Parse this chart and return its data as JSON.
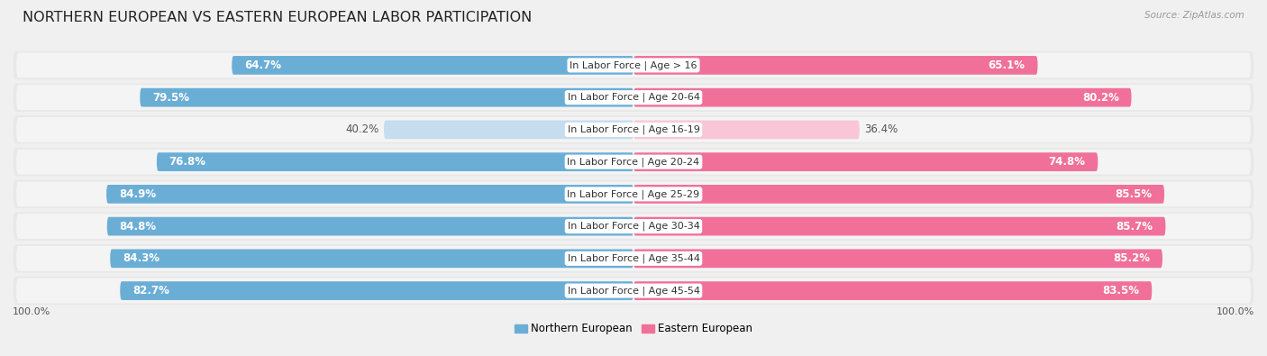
{
  "title": "NORTHERN EUROPEAN VS EASTERN EUROPEAN LABOR PARTICIPATION",
  "source": "Source: ZipAtlas.com",
  "categories": [
    "In Labor Force | Age > 16",
    "In Labor Force | Age 20-64",
    "In Labor Force | Age 16-19",
    "In Labor Force | Age 20-24",
    "In Labor Force | Age 25-29",
    "In Labor Force | Age 30-34",
    "In Labor Force | Age 35-44",
    "In Labor Force | Age 45-54"
  ],
  "northern_values": [
    64.7,
    79.5,
    40.2,
    76.8,
    84.9,
    84.8,
    84.3,
    82.7
  ],
  "eastern_values": [
    65.1,
    80.2,
    36.4,
    74.8,
    85.5,
    85.7,
    85.2,
    83.5
  ],
  "northern_color": "#6aaed6",
  "northern_color_light": "#c6dcef",
  "eastern_color": "#f0709a",
  "eastern_color_light": "#f9c6d8",
  "row_bg_color": "#e8e8e8",
  "row_bg_inner": "#f4f4f4",
  "label_color_white": "#ffffff",
  "label_color_dark": "#555555",
  "max_value": 100.0,
  "legend_northern": "Northern European",
  "legend_eastern": "Eastern European",
  "title_fontsize": 11.5,
  "value_fontsize": 8.5,
  "category_fontsize": 8.0,
  "legend_fontsize": 8.5,
  "axis_label_fontsize": 8.0,
  "figure_bg": "#f0f0f0"
}
